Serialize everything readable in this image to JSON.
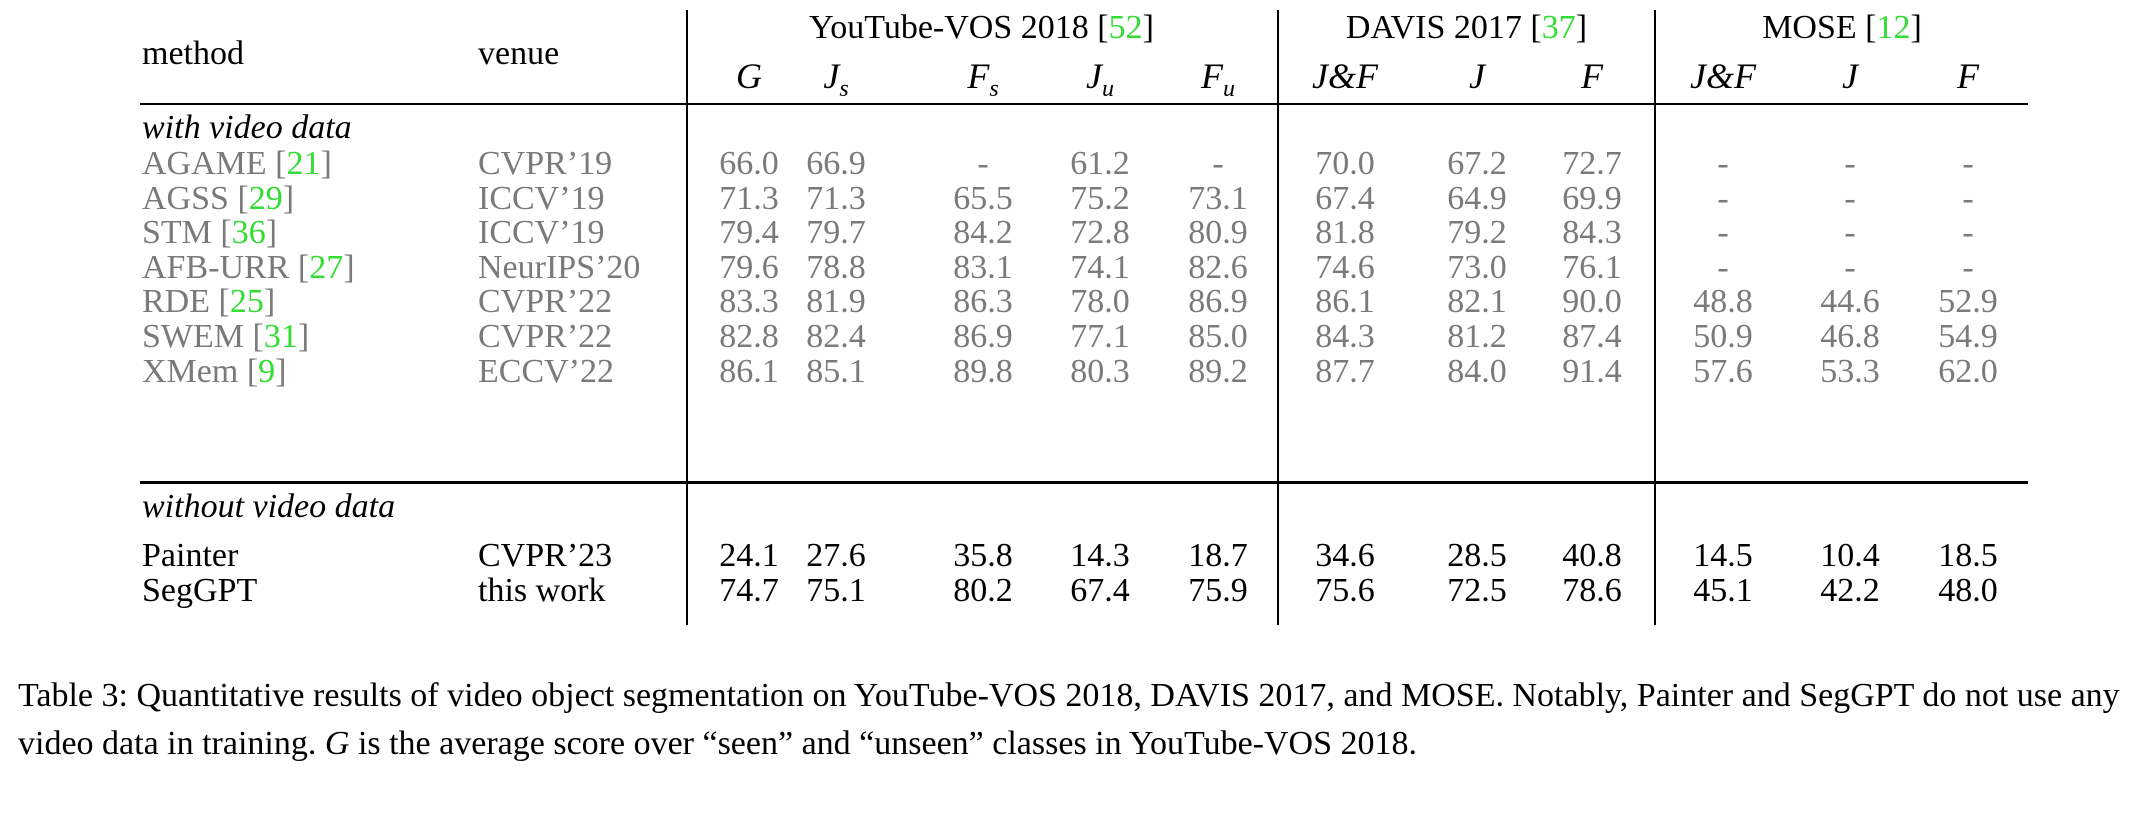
{
  "table": {
    "group_headers": {
      "ytvos": {
        "name": "YouTube-VOS 2018",
        "cite": "52"
      },
      "davis": {
        "name": "DAVIS 2017",
        "cite": "37"
      },
      "mose": {
        "name": "MOSE",
        "cite": "12"
      }
    },
    "col_method": "method",
    "col_venue": "venue",
    "subheaders": {
      "ytvos": [
        {
          "main": "G",
          "sub": ""
        },
        {
          "main": "J",
          "sub": "s"
        },
        {
          "main": "F",
          "sub": "s"
        },
        {
          "main": "J",
          "sub": "u"
        },
        {
          "main": "F",
          "sub": "u"
        }
      ],
      "davis": [
        "J&F",
        "J",
        "F"
      ],
      "mose": [
        "J&F",
        "J",
        "F"
      ]
    },
    "section_video": "with video data",
    "section_novideo": "without video data",
    "rows_video": [
      {
        "method": "AGAME",
        "cite": "21",
        "venue": "CVPR’19",
        "values": [
          "66.0",
          "66.9",
          "-",
          "61.2",
          "-",
          "70.0",
          "67.2",
          "72.7",
          "-",
          "-",
          "-"
        ]
      },
      {
        "method": "AGSS",
        "cite": "29",
        "venue": "ICCV’19",
        "values": [
          "71.3",
          "71.3",
          "65.5",
          "75.2",
          "73.1",
          "67.4",
          "64.9",
          "69.9",
          "-",
          "-",
          "-"
        ]
      },
      {
        "method": "STM",
        "cite": "36",
        "venue": "ICCV’19",
        "values": [
          "79.4",
          "79.7",
          "84.2",
          "72.8",
          "80.9",
          "81.8",
          "79.2",
          "84.3",
          "-",
          "-",
          "-"
        ]
      },
      {
        "method": "AFB-URR",
        "cite": "27",
        "venue": "NeurIPS’20",
        "values": [
          "79.6",
          "78.8",
          "83.1",
          "74.1",
          "82.6",
          "74.6",
          "73.0",
          "76.1",
          "-",
          "-",
          "-"
        ]
      },
      {
        "method": "RDE",
        "cite": "25",
        "venue": "CVPR’22",
        "values": [
          "83.3",
          "81.9",
          "86.3",
          "78.0",
          "86.9",
          "86.1",
          "82.1",
          "90.0",
          "48.8",
          "44.6",
          "52.9"
        ]
      },
      {
        "method": "SWEM",
        "cite": "31",
        "venue": "CVPR’22",
        "values": [
          "82.8",
          "82.4",
          "86.9",
          "77.1",
          "85.0",
          "84.3",
          "81.2",
          "87.4",
          "50.9",
          "46.8",
          "54.9"
        ]
      },
      {
        "method": "XMem",
        "cite": "9",
        "venue": "ECCV’22",
        "values": [
          "86.1",
          "85.1",
          "89.8",
          "80.3",
          "89.2",
          "87.7",
          "84.0",
          "91.4",
          "57.6",
          "53.3",
          "62.0"
        ]
      }
    ],
    "rows_novideo": [
      {
        "method": "Painter",
        "cite": "",
        "venue": "CVPR’23",
        "values": [
          "24.1",
          "27.6",
          "35.8",
          "14.3",
          "18.7",
          "34.6",
          "28.5",
          "40.8",
          "14.5",
          "10.4",
          "18.5"
        ]
      },
      {
        "method": "SegGPT",
        "cite": "",
        "venue": "this work",
        "values": [
          "74.7",
          "75.1",
          "80.2",
          "67.4",
          "75.9",
          "75.6",
          "72.5",
          "78.6",
          "45.1",
          "42.2",
          "48.0"
        ]
      }
    ]
  },
  "caption": {
    "label": "Table 3:",
    "text_1": " Quantitative results of video object segmentation on YouTube-VOS 2018, DAVIS 2017, and MOSE. Notably, Painter and SegGPT do not use any video data in training. ",
    "g_symbol": "G",
    "text_2": " is the average score over “seen” and “unseen” classes in YouTube-VOS 2018."
  },
  "colors": {
    "grey_text": "#7a7a7a",
    "citation": "#33dd33"
  }
}
